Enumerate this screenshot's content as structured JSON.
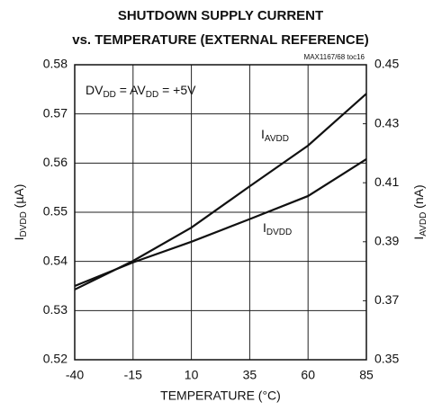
{
  "chart_data": {
    "type": "line",
    "title_lines": [
      "SHUTDOWN SUPPLY CURRENT",
      "vs. TEMPERATURE (EXTERNAL REFERENCE)"
    ],
    "code": "MAX1167/68 toc16",
    "annotation_parts": [
      "DV",
      "DD",
      " = AV",
      "DD",
      " = +5V"
    ],
    "xlabel": "TEMPERATURE (°C)",
    "ylabel_parts": [
      "I",
      "DVDD",
      " (µA)"
    ],
    "y2label_parts": [
      "I",
      "AVDD",
      " (nA)"
    ],
    "x": [
      -40,
      -15,
      10,
      35,
      60,
      85
    ],
    "xlim": [
      -40,
      85
    ],
    "xticks": [
      -40,
      -15,
      10,
      35,
      60,
      85
    ],
    "ylim": [
      0.52,
      0.58
    ],
    "yticks": [
      0.52,
      0.53,
      0.54,
      0.55,
      0.56,
      0.57,
      0.58
    ],
    "y2lim": [
      0.35,
      0.45
    ],
    "y2ticks": [
      0.35,
      0.37,
      0.39,
      0.41,
      0.43,
      0.45
    ],
    "grid": true,
    "series": [
      {
        "name_parts": [
          "I",
          "DVDD"
        ],
        "color": "#111111",
        "values": [
          0.535,
          0.5398,
          0.544,
          0.5486,
          0.5533,
          0.5608
        ]
      },
      {
        "name_parts": [
          "I",
          "AVDD"
        ],
        "color": "#111111",
        "axis": "y2",
        "values": [
          0.3738,
          0.3835,
          0.3948,
          0.4088,
          0.4226,
          0.4402
        ]
      }
    ]
  }
}
